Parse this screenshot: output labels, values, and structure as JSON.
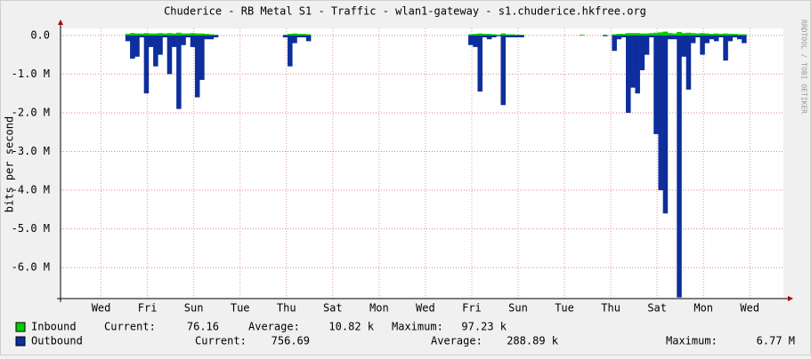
{
  "chart_data": {
    "type": "bar",
    "title": "Chuderice - RB Metal S1 - Traffic - wlan1-gateway - s1.chuderice.hkfree.org",
    "y_label": "bits per second",
    "watermark": "RRDTOOL / TOBI OETIKER",
    "grid": true,
    "xlim": [
      0,
      31.2
    ],
    "xticks": [
      {
        "value": 1.75,
        "label": "Wed"
      },
      {
        "value": 3.75,
        "label": "Fri"
      },
      {
        "value": 5.75,
        "label": "Sun"
      },
      {
        "value": 7.75,
        "label": "Tue"
      },
      {
        "value": 9.75,
        "label": "Thu"
      },
      {
        "value": 11.75,
        "label": "Sat"
      },
      {
        "value": 13.75,
        "label": "Mon"
      },
      {
        "value": 15.75,
        "label": "Wed"
      },
      {
        "value": 17.75,
        "label": "Fri"
      },
      {
        "value": 19.75,
        "label": "Sun"
      },
      {
        "value": 21.75,
        "label": "Tue"
      },
      {
        "value": 23.75,
        "label": "Thu"
      },
      {
        "value": 25.75,
        "label": "Sat"
      },
      {
        "value": 27.75,
        "label": "Mon"
      },
      {
        "value": 29.75,
        "label": "Wed"
      }
    ],
    "ylim": [
      -6800000,
      180000
    ],
    "yticks": [
      {
        "value": 0,
        "label": "0.0"
      },
      {
        "value": -1000000,
        "label": "-1.0 M"
      },
      {
        "value": -2000000,
        "label": "-2.0 M"
      },
      {
        "value": -3000000,
        "label": "-3.0 M"
      },
      {
        "value": -4000000,
        "label": "-4.0 M"
      },
      {
        "value": -5000000,
        "label": "-5.0 M"
      },
      {
        "value": -6000000,
        "label": "-6.0 M"
      }
    ],
    "x": [
      2.8,
      3.0,
      3.2,
      3.4,
      3.6,
      3.8,
      4.0,
      4.2,
      4.4,
      4.6,
      4.8,
      5.0,
      5.2,
      5.4,
      5.6,
      5.8,
      6.0,
      6.2,
      6.4,
      6.6,
      9.6,
      9.8,
      10.0,
      10.2,
      10.4,
      10.6,
      17.6,
      17.8,
      18.0,
      18.2,
      18.4,
      18.6,
      18.8,
      19.0,
      19.2,
      19.4,
      19.6,
      19.8,
      22.4,
      23.4,
      23.8,
      24.0,
      24.2,
      24.4,
      24.6,
      24.8,
      25.0,
      25.2,
      25.4,
      25.6,
      25.8,
      26.0,
      26.2,
      26.4,
      26.6,
      26.8,
      27.0,
      27.2,
      27.4,
      27.6,
      27.8,
      28.0,
      28.2,
      28.4,
      28.6,
      28.8,
      29.0,
      29.2,
      29.4
    ],
    "series": [
      {
        "name": "Inbound",
        "color": "#00cc00",
        "stats": [
          [
            "Current:",
            "76.16"
          ],
          [
            "Average:",
            "10.82 k"
          ],
          [
            "Maximum:",
            "97.23 k"
          ]
        ],
        "values": [
          40000,
          60000,
          50000,
          50000,
          60000,
          50000,
          50000,
          60000,
          50000,
          60000,
          50000,
          70000,
          50000,
          50000,
          60000,
          50000,
          50000,
          40000,
          30000,
          20000,
          20000,
          40000,
          50000,
          40000,
          40000,
          30000,
          30000,
          40000,
          50000,
          40000,
          40000,
          30000,
          20000,
          50000,
          30000,
          30000,
          20000,
          20000,
          20000,
          20000,
          30000,
          40000,
          40000,
          60000,
          60000,
          60000,
          50000,
          50000,
          60000,
          70000,
          80000,
          97230,
          60000,
          50000,
          90000,
          60000,
          70000,
          60000,
          50000,
          60000,
          50000,
          40000,
          50000,
          40000,
          50000,
          40000,
          40000,
          30000,
          30000
        ]
      },
      {
        "name": "Outbound",
        "color": "#0d2e9c",
        "stats": [
          [
            "Current:",
            "756.69"
          ],
          [
            "Average:",
            "288.89 k"
          ],
          [
            "Maximum:",
            "6.77 M"
          ]
        ],
        "values": [
          -150000,
          -600000,
          -550000,
          -50000,
          -1500000,
          -300000,
          -800000,
          -500000,
          -50000,
          -1000000,
          -300000,
          -1900000,
          -250000,
          -50000,
          -300000,
          -1600000,
          -1150000,
          -100000,
          -100000,
          -50000,
          -50000,
          -800000,
          -200000,
          -50000,
          -50000,
          -150000,
          -250000,
          -300000,
          -1450000,
          -50000,
          -100000,
          -50000,
          -20000,
          -1800000,
          -50000,
          -50000,
          -50000,
          -50000,
          0,
          -20000,
          -400000,
          -100000,
          -50000,
          -2000000,
          -1350000,
          -1500000,
          -900000,
          -500000,
          -50000,
          -2550000,
          -4000000,
          -4600000,
          -100000,
          -100000,
          -6770000,
          -550000,
          -1400000,
          -200000,
          -50000,
          -500000,
          -200000,
          -100000,
          -150000,
          -50000,
          -650000,
          -150000,
          -50000,
          -100000,
          -200000
        ]
      }
    ]
  }
}
